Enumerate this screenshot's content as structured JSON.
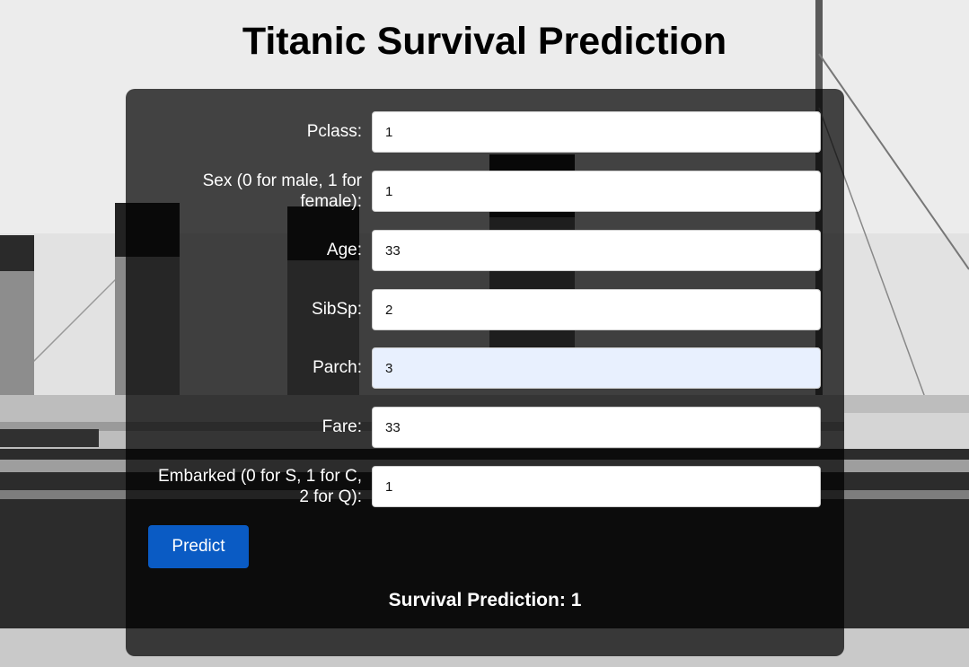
{
  "page": {
    "title": "Titanic Survival Prediction"
  },
  "form": {
    "fields": [
      {
        "label": "Pclass:",
        "value": "1"
      },
      {
        "label": "Sex (0 for male, 1 for female):",
        "value": "1"
      },
      {
        "label": "Age:",
        "value": "33"
      },
      {
        "label": "SibSp:",
        "value": "2"
      },
      {
        "label": "Parch:",
        "value": "3"
      },
      {
        "label": "Fare:",
        "value": "33"
      },
      {
        "label": "Embarked (0 for S, 1 for C, 2 for Q):",
        "value": "1"
      }
    ],
    "submit_label": "Predict"
  },
  "result": {
    "label": "Survival Prediction:",
    "value": "1"
  },
  "colors": {
    "button": "#0a5bc4",
    "panel": "rgba(0,0,0,0.72)",
    "autofill_input": "#e8f0fe"
  }
}
